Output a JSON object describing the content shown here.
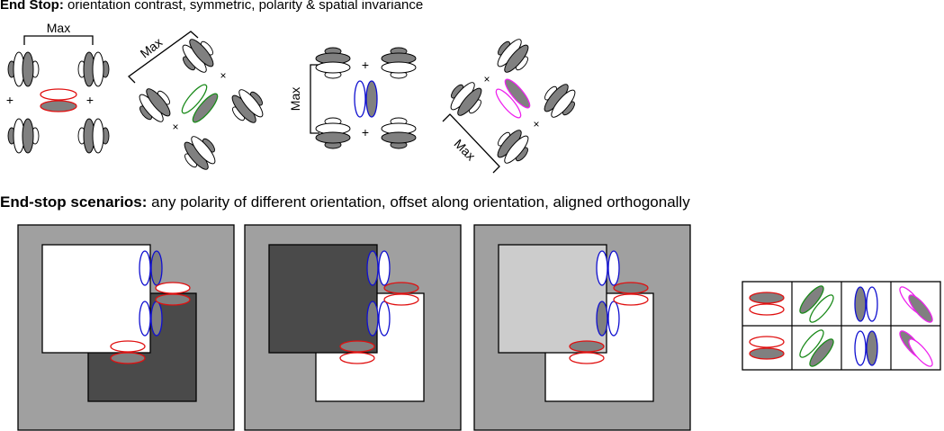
{
  "heading_top": {
    "bold": "End Stop:",
    "rest": " orientation contrast, symmetric, polarity & spatial invariance"
  },
  "heading_bottom": {
    "bold": "End-stop scenarios:",
    "rest": " any polarity of different orientation, offset along orientation, aligned orthogonally"
  },
  "labels": {
    "max": "Max",
    "plus": "+",
    "times": "×"
  },
  "colors": {
    "background_gray": "#a0a0a0",
    "dark_gray": "#4a4a4a",
    "light_gray": "#cccccc",
    "filter_gray": "#808080",
    "red": "#e01010",
    "green": "#1a8a1a",
    "blue": "#1010d0",
    "magenta": "#ee22ee"
  }
}
